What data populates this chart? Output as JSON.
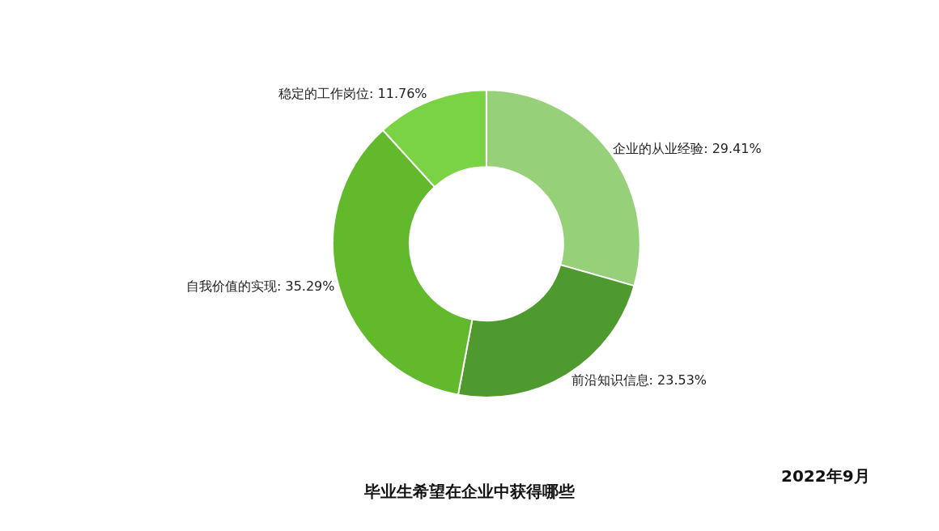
{
  "chart_data": {
    "type": "donut",
    "title": "毕业生希望在企业中获得哪些",
    "annotations": [
      "2022年9月"
    ],
    "categories": [
      "企业的从业经验",
      "前沿知识信息",
      "自我价值的实现",
      "稳定的工作岗位"
    ],
    "values": [
      29.41,
      23.53,
      35.29,
      11.76
    ],
    "value_labels": [
      "29.41%",
      "23.53%",
      "35.29%",
      "11.76%"
    ],
    "colors": [
      "#96d17a",
      "#4e9a2e",
      "#62b92b",
      "#7ad344"
    ],
    "legend": false
  }
}
